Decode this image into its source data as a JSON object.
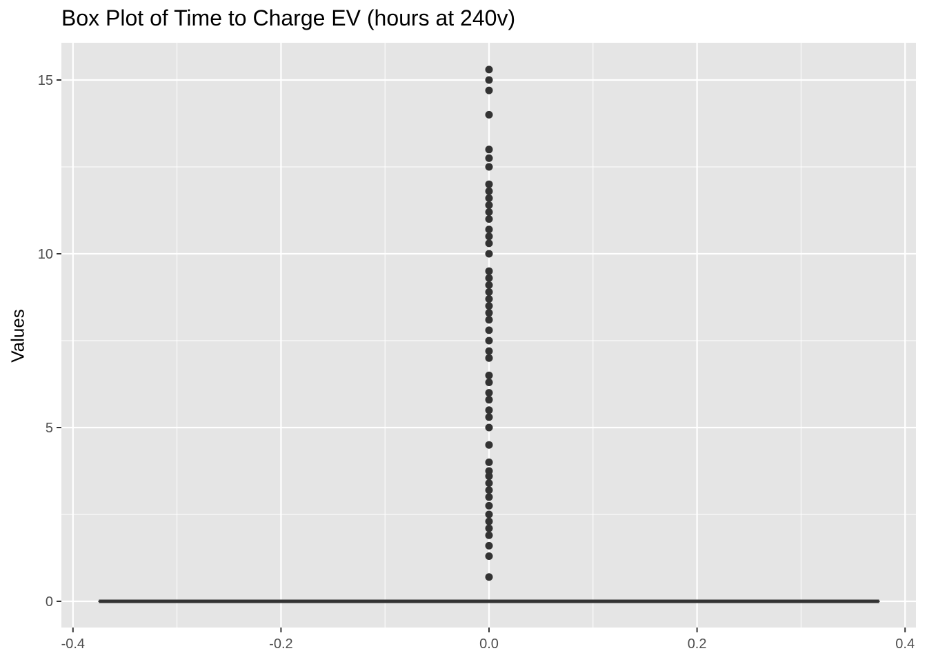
{
  "chart_data": {
    "type": "box",
    "title": "Box Plot of Time to Charge EV (hours at 240v)",
    "xlabel": "",
    "ylabel": "Values",
    "xlim": [
      -0.4,
      0.4
    ],
    "ylim": [
      0,
      15
    ],
    "x_ticks": [
      -0.4,
      -0.2,
      0.0,
      0.2,
      0.4
    ],
    "x_tick_labels": [
      "-0.4",
      "-0.2",
      "0.0",
      "0.2",
      "0.4"
    ],
    "y_ticks": [
      0,
      5,
      10,
      15
    ],
    "y_tick_labels": [
      "0",
      "5",
      "10",
      "15"
    ],
    "grid": true,
    "background": "#e5e5e5",
    "box": {
      "x_range": [
        -0.375,
        0.375
      ],
      "q1": 0,
      "median": 0,
      "q3": 0,
      "whisker_low": 0,
      "whisker_high": 0
    },
    "outliers": {
      "x": 0.0,
      "y": [
        15.3,
        15.0,
        14.7,
        14.0,
        13.0,
        12.75,
        12.5,
        12.0,
        11.8,
        11.6,
        11.4,
        11.2,
        11.0,
        10.7,
        10.5,
        10.3,
        10.0,
        9.5,
        9.3,
        9.1,
        8.9,
        8.7,
        8.5,
        8.3,
        8.1,
        7.8,
        7.5,
        7.2,
        7.0,
        6.5,
        6.3,
        6.0,
        5.8,
        5.5,
        5.3,
        5.0,
        4.5,
        4.0,
        3.75,
        3.6,
        3.4,
        3.2,
        3.0,
        2.75,
        2.5,
        2.3,
        2.1,
        1.9,
        1.6,
        1.3,
        0.7
      ],
      "color": "#333333"
    }
  }
}
